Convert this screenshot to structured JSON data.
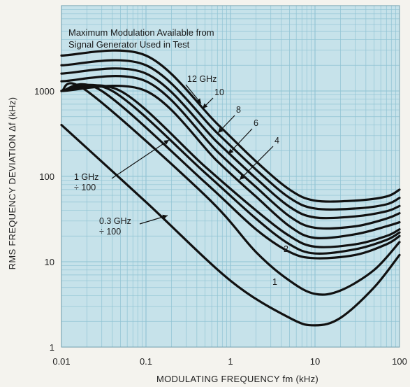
{
  "chart_data": {
    "type": "line",
    "xlabel": "MODULATING FREQUENCY fm (kHz)",
    "ylabel": "RMS FREQUENCY DEVIATION Δf (kHz)",
    "x_scale": "log",
    "y_scale": "log",
    "xlim": [
      0.01,
      100
    ],
    "ylim": [
      1,
      10000
    ],
    "x_ticks": [
      "0.01",
      "0.1",
      "1",
      "10",
      "100"
    ],
    "y_ticks": [
      "1",
      "10",
      "100",
      "1000"
    ],
    "grid": true,
    "colors": {
      "background": "#c6e2ea",
      "grid": "#8fc3d3",
      "line": "#111111"
    },
    "annotation_lines": [
      "Maximum Modulation Available from",
      "Signal Generator Used in Test"
    ],
    "series": [
      {
        "name": "12 GHz",
        "points": [
          [
            0.01,
            2600
          ],
          [
            0.1,
            2600
          ],
          [
            0.7,
            410
          ],
          [
            2,
            150
          ],
          [
            5,
            70
          ],
          [
            10,
            52
          ],
          [
            30,
            52
          ],
          [
            70,
            58
          ],
          [
            100,
            70
          ]
        ]
      },
      {
        "name": "10",
        "points": [
          [
            0.01,
            2000
          ],
          [
            0.1,
            2000
          ],
          [
            0.7,
            320
          ],
          [
            2,
            120
          ],
          [
            5,
            56
          ],
          [
            10,
            42
          ],
          [
            30,
            42
          ],
          [
            70,
            47
          ],
          [
            100,
            56
          ]
        ]
      },
      {
        "name": "8",
        "points": [
          [
            0.01,
            1600
          ],
          [
            0.1,
            1600
          ],
          [
            0.7,
            250
          ],
          [
            2,
            95
          ],
          [
            5,
            44
          ],
          [
            10,
            33
          ],
          [
            30,
            34
          ],
          [
            70,
            39
          ],
          [
            100,
            45
          ]
        ]
      },
      {
        "name": "6",
        "points": [
          [
            0.01,
            1300
          ],
          [
            0.1,
            1300
          ],
          [
            0.7,
            195
          ],
          [
            2,
            75
          ],
          [
            5,
            34
          ],
          [
            10,
            25
          ],
          [
            30,
            26
          ],
          [
            70,
            32
          ],
          [
            100,
            37
          ]
        ]
      },
      {
        "name": "4",
        "points": [
          [
            0.01,
            1000
          ],
          [
            0.1,
            1000
          ],
          [
            0.7,
            150
          ],
          [
            2,
            58
          ],
          [
            5,
            26
          ],
          [
            10,
            19
          ],
          [
            30,
            21
          ],
          [
            70,
            26
          ],
          [
            100,
            29
          ]
        ]
      },
      {
        "name": "",
        "points": [
          [
            0.01,
            1000
          ],
          [
            0.05,
            1000
          ],
          [
            0.5,
            130
          ],
          [
            2,
            40
          ],
          [
            5,
            20
          ],
          [
            10,
            15
          ],
          [
            30,
            16
          ],
          [
            70,
            20
          ],
          [
            100,
            24
          ]
        ]
      },
      {
        "name": "2",
        "points": [
          [
            0.01,
            1000
          ],
          [
            0.04,
            1000
          ],
          [
            0.5,
            110
          ],
          [
            2,
            32
          ],
          [
            5,
            16
          ],
          [
            10,
            12.5
          ],
          [
            30,
            14
          ],
          [
            70,
            18
          ],
          [
            100,
            22
          ]
        ]
      },
      {
        "name": "",
        "points": [
          [
            0.01,
            1000
          ],
          [
            0.03,
            1000
          ],
          [
            0.5,
            85
          ],
          [
            2,
            24
          ],
          [
            5,
            13
          ],
          [
            10,
            11
          ],
          [
            30,
            12
          ],
          [
            70,
            16
          ],
          [
            100,
            20
          ]
        ]
      },
      {
        "name": "1",
        "points": [
          [
            0.01,
            1000
          ],
          [
            0.02,
            1000
          ],
          [
            0.5,
            60
          ],
          [
            2,
            13
          ],
          [
            5,
            6
          ],
          [
            10,
            4.2
          ],
          [
            20,
            4.6
          ],
          [
            50,
            8
          ],
          [
            100,
            17
          ]
        ]
      },
      {
        "name": "",
        "points": [
          [
            0.01,
            400
          ],
          [
            0.1,
            50
          ],
          [
            1,
            6
          ],
          [
            5,
            2.2
          ],
          [
            10,
            1.8
          ],
          [
            20,
            2.2
          ],
          [
            50,
            5
          ],
          [
            100,
            12
          ]
        ]
      }
    ],
    "callouts": [
      {
        "lines": [
          "12 GHz"
        ],
        "target": [
          0.95,
          650
        ]
      },
      {
        "lines": [
          "10"
        ],
        "target": [
          0.72,
          320
        ]
      },
      {
        "lines": [
          "8"
        ],
        "target": [
          0.55,
          190
        ]
      },
      {
        "lines": [
          "6"
        ],
        "target": [
          0.55,
          140
        ]
      },
      {
        "lines": [
          "4"
        ],
        "target": [
          0.85,
          85
        ]
      },
      {
        "lines": [
          "2"
        ],
        "target": [
          7.5,
          15
        ]
      },
      {
        "lines": [
          "1"
        ],
        "target": [
          4.8,
          6.5
        ]
      },
      {
        "lines": [
          "1 GHz",
          "÷ 100"
        ],
        "target": [
          0.28,
          600
        ]
      },
      {
        "lines": [
          "0.3 GHz",
          "÷ 100"
        ],
        "target": [
          0.3,
          150
        ]
      }
    ]
  }
}
